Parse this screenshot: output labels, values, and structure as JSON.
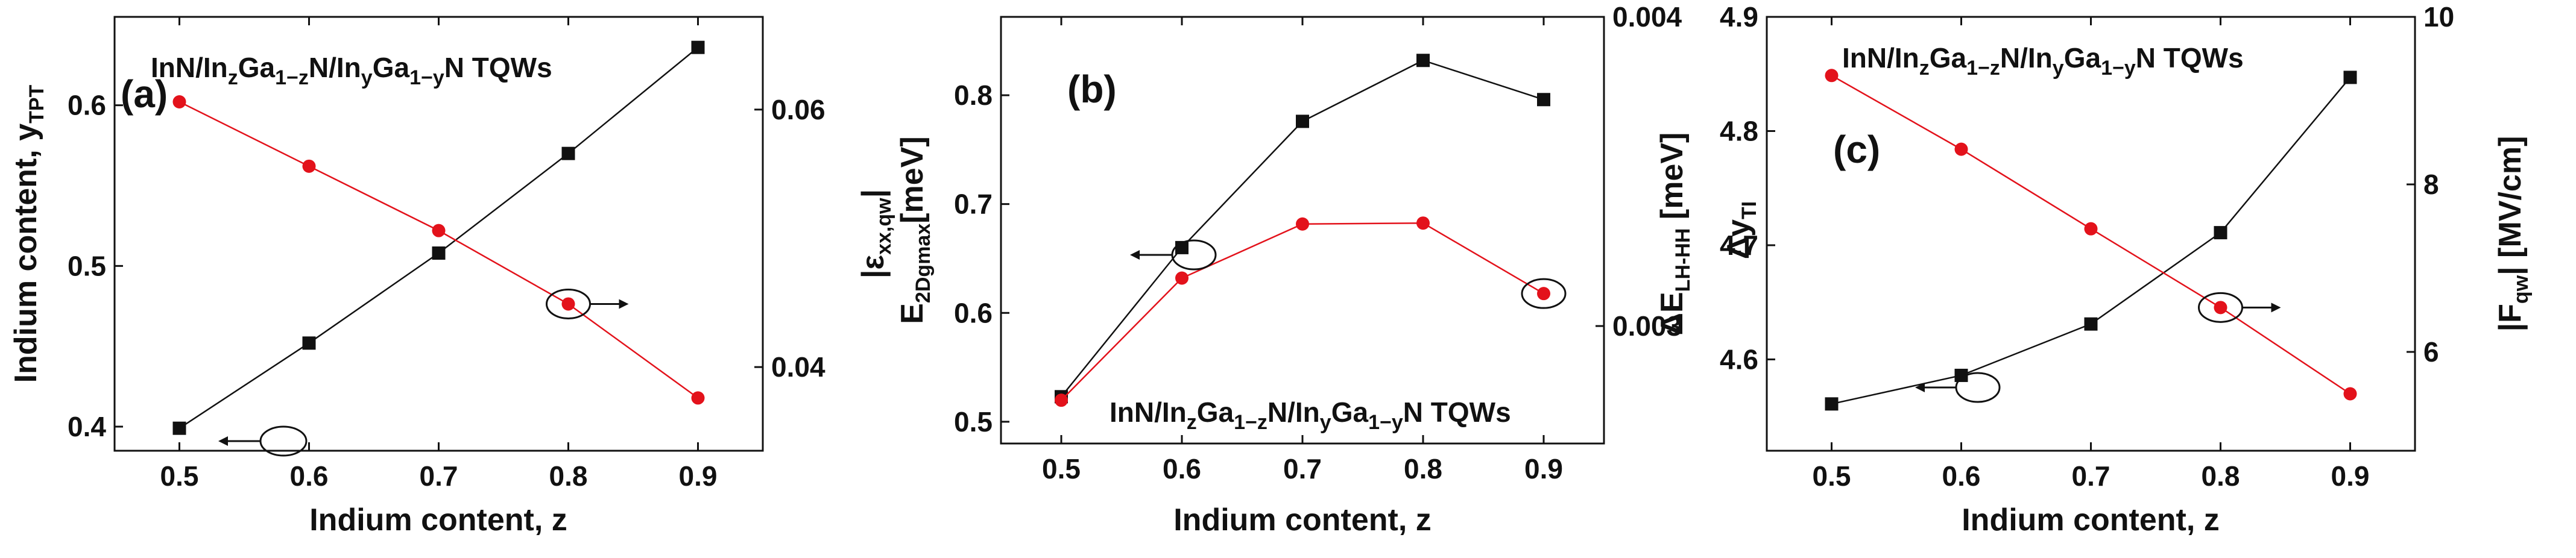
{
  "chart_data": [
    {
      "type": "line",
      "panel": "(a)",
      "x": [
        0.5,
        0.6,
        0.7,
        0.8,
        0.9
      ],
      "xlim": [
        0.45,
        0.95
      ],
      "xticks": [
        "0.5",
        "0.6",
        "0.7",
        "0.8",
        "0.9"
      ],
      "xlabel": "Indium content, z",
      "annotation": {
        "prefix": "InN/In",
        "a": "z",
        "b": "Ga",
        "c": "1−z",
        "d": "N/In",
        "e": "y",
        "f": "Ga",
        "g": "1−y",
        "h": "N TQWs"
      },
      "left_axis": {
        "label_main": "Indium content, y",
        "label_sub": "TPT",
        "ylim": [
          0.385,
          0.655
        ],
        "ticks": [
          "0.4",
          "0.5",
          "0.6"
        ]
      },
      "right_axis": {
        "label_main": "|ε",
        "label_sub": "xx,qw",
        "label_end": "|",
        "ylim": [
          0.0335,
          0.0672
        ],
        "ticks": [
          "0.04",
          "0.06"
        ]
      },
      "series": [
        {
          "name": "y_TPT",
          "axis": "left",
          "color": "#111111",
          "marker": "square",
          "values": [
            0.399,
            0.452,
            0.508,
            0.57,
            0.636
          ]
        },
        {
          "name": "|ε_xx,qw|",
          "axis": "right",
          "color": "#e3121b",
          "marker": "circle",
          "values": [
            0.0606,
            0.0556,
            0.0506,
            0.0449,
            0.0376
          ]
        }
      ]
    },
    {
      "type": "line",
      "panel": "(b)",
      "x": [
        0.5,
        0.6,
        0.7,
        0.8,
        0.9
      ],
      "xlim": [
        0.45,
        0.95
      ],
      "xticks": [
        "0.5",
        "0.6",
        "0.7",
        "0.8",
        "0.9"
      ],
      "xlabel": "Indium content, z",
      "annotation": {
        "prefix": "InN/In",
        "a": "z",
        "b": "Ga",
        "c": "1−z",
        "d": "N/In",
        "e": "y",
        "f": "Ga",
        "g": "1−y",
        "h": "N TQWs"
      },
      "left_axis": {
        "label_main": "E",
        "label_sub": "2Dgmax",
        "label_end": "[meV]",
        "ylim": [
          0.48,
          0.872
        ],
        "ticks": [
          "0.5",
          "0.6",
          "0.7",
          "0.8"
        ]
      },
      "right_axis": {
        "label_main": "Δy",
        "label_sub": "TI",
        "ylim": [
          0.00262,
          0.004
        ],
        "ticks": [
          "0.003",
          "0.004"
        ]
      },
      "series": [
        {
          "name": "E_2Dgmax",
          "axis": "left",
          "color": "#111111",
          "marker": "square",
          "values": [
            0.523,
            0.66,
            0.776,
            0.832,
            0.796
          ]
        },
        {
          "name": "Δy_TI",
          "axis": "right",
          "color": "#e3121b",
          "marker": "circle",
          "values": [
            0.00276,
            0.003155,
            0.00333,
            0.003333,
            0.003105
          ]
        }
      ]
    },
    {
      "type": "line",
      "panel": "(c)",
      "x": [
        0.5,
        0.6,
        0.7,
        0.8,
        0.9
      ],
      "xlim": [
        0.45,
        0.95
      ],
      "xticks": [
        "0.5",
        "0.6",
        "0.7",
        "0.8",
        "0.9"
      ],
      "xlabel": "Indium content, z",
      "annotation": {
        "prefix": "InN/In",
        "a": "z",
        "b": "Ga",
        "c": "1−z",
        "d": "N/In",
        "e": "y",
        "f": "Ga",
        "g": "1−y",
        "h": "N TQWs"
      },
      "left_axis": {
        "label_main": "ΔE",
        "label_sub": "LH-HH",
        "label_end": " [meV]",
        "ylim": [
          4.52,
          4.9
        ],
        "ticks": [
          "4.6",
          "4.7",
          "4.8",
          "4.9"
        ]
      },
      "right_axis": {
        "label_main": "|F",
        "label_sub": "qw",
        "label_end": "| [MV/cm]",
        "ylim": [
          4.82,
          10
        ],
        "ticks": [
          "6",
          "8",
          "10"
        ]
      },
      "series": [
        {
          "name": "ΔE_LH-HH",
          "axis": "left",
          "color": "#111111",
          "marker": "square",
          "values": [
            4.561,
            4.586,
            4.631,
            4.711,
            4.847
          ]
        },
        {
          "name": "|F_qw|",
          "axis": "right",
          "color": "#e3121b",
          "marker": "circle",
          "values": [
            9.3,
            8.42,
            7.47,
            6.53,
            5.5
          ]
        }
      ]
    }
  ]
}
